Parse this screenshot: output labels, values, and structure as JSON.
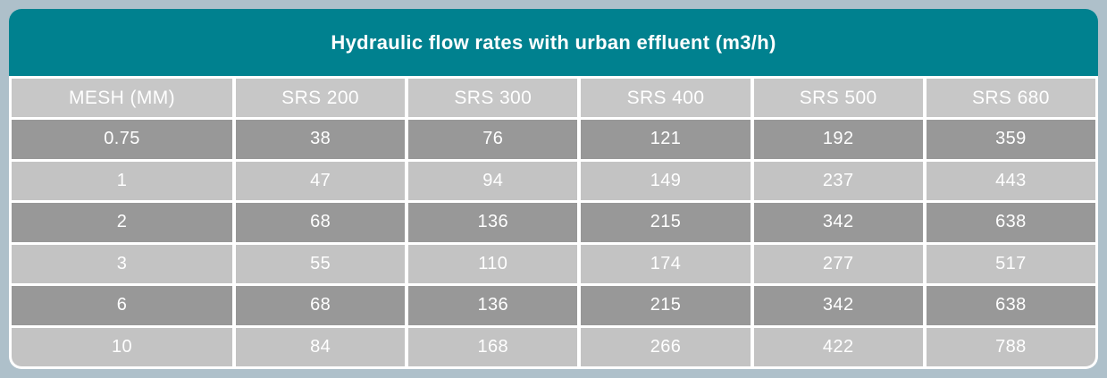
{
  "colors": {
    "page_bg": "#aec0ca",
    "title_bg": "#00818f",
    "header_bg": "#c7c7c7",
    "row_dark_bg": "#989898",
    "row_light_bg": "#c3c3c3",
    "cell_text": "#ffffff"
  },
  "chart_data": {
    "type": "table",
    "title": "Hydraulic flow rates with urban effluent (m3/h)",
    "columns": [
      "MESH (MM)",
      "SRS 200",
      "SRS 300",
      "SRS 400",
      "SRS 500",
      "SRS 680"
    ],
    "row_header_column": "MESH (MM)",
    "units": "m3/h",
    "rows": [
      [
        "0.75",
        38,
        76,
        121,
        192,
        359
      ],
      [
        "1",
        47,
        94,
        149,
        237,
        443
      ],
      [
        "2",
        68,
        136,
        215,
        342,
        638
      ],
      [
        "3",
        55,
        110,
        174,
        277,
        517
      ],
      [
        "6",
        68,
        136,
        215,
        342,
        638
      ],
      [
        "10",
        84,
        168,
        266,
        422,
        788
      ]
    ]
  }
}
